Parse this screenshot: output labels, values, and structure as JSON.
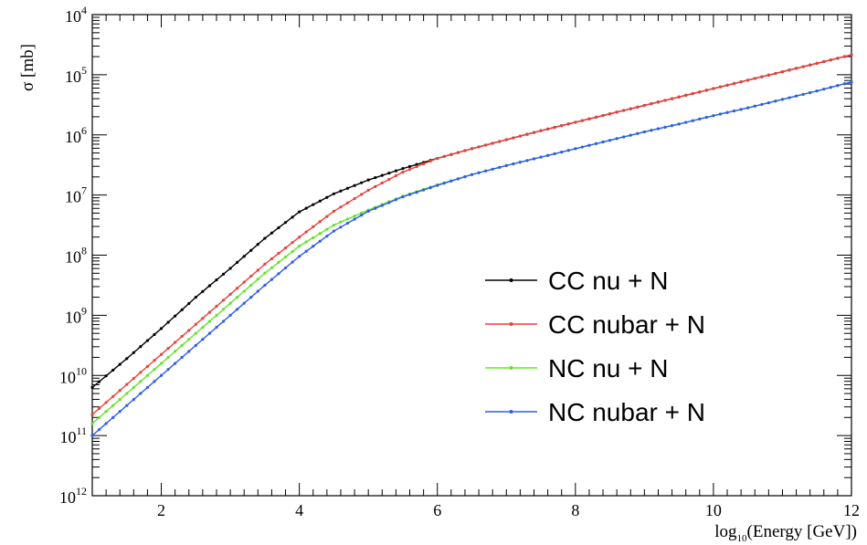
{
  "chart_data": {
    "type": "line",
    "xlabel": "log10(Energy [GeV])",
    "xlabel_parts": {
      "pre": "log",
      "sub": "10",
      "post": "(Energy [GeV])"
    },
    "ylabel": "σ [mb]",
    "x_scale": "linear",
    "y_scale": "log",
    "xlim": [
      1,
      12
    ],
    "y_axis_note": "y tick labels are printed with positive exponents (misprinted minus signs); values below are the cross sections in mb",
    "ylim": [
      1e-12,
      0.0001
    ],
    "x_ticks": [
      2,
      4,
      6,
      8,
      10,
      12
    ],
    "y_ticks": [
      {
        "value": 0.0001,
        "base": "10",
        "exp": "4"
      },
      {
        "value": 1e-05,
        "base": "10",
        "exp": "5"
      },
      {
        "value": 1e-06,
        "base": "10",
        "exp": "6"
      },
      {
        "value": 1e-07,
        "base": "10",
        "exp": "7"
      },
      {
        "value": 1e-08,
        "base": "10",
        "exp": "8"
      },
      {
        "value": 1e-09,
        "base": "10",
        "exp": "9"
      },
      {
        "value": 1e-10,
        "base": "10",
        "exp": "10"
      },
      {
        "value": 1e-11,
        "base": "10",
        "exp": "11"
      },
      {
        "value": 1e-12,
        "base": "10",
        "exp": "12"
      }
    ],
    "grid": false,
    "legend_position": "bottom-right",
    "x": [
      1,
      1.5,
      2,
      2.5,
      3,
      3.5,
      4,
      4.5,
      5,
      5.5,
      6,
      6.5,
      7,
      7.5,
      8,
      8.5,
      9,
      9.5,
      10,
      10.5,
      11,
      11.5,
      12
    ],
    "series": [
      {
        "name": "CC nu + N",
        "color": "#000000",
        "log10_values": [
          -10.2,
          -9.72,
          -9.22,
          -8.7,
          -8.22,
          -7.72,
          -7.28,
          -6.98,
          -6.75,
          -6.56,
          -6.39,
          -6.23,
          -6.08,
          -5.93,
          -5.79,
          -5.65,
          -5.51,
          -5.37,
          -5.23,
          -5.09,
          -4.95,
          -4.81,
          -4.67
        ]
      },
      {
        "name": "CC nubar + N",
        "color": "#e8423a",
        "log10_values": [
          -10.65,
          -10.15,
          -9.65,
          -9.15,
          -8.65,
          -8.15,
          -7.7,
          -7.27,
          -6.92,
          -6.62,
          -6.39,
          -6.23,
          -6.08,
          -5.93,
          -5.79,
          -5.65,
          -5.51,
          -5.37,
          -5.23,
          -5.09,
          -4.95,
          -4.81,
          -4.67
        ]
      },
      {
        "name": "NC nu + N",
        "color": "#66e22e",
        "log10_values": [
          -10.8,
          -10.3,
          -9.8,
          -9.3,
          -8.8,
          -8.3,
          -7.85,
          -7.5,
          -7.25,
          -7.02,
          -6.83,
          -6.66,
          -6.51,
          -6.37,
          -6.23,
          -6.09,
          -5.95,
          -5.82,
          -5.68,
          -5.55,
          -5.41,
          -5.27,
          -5.12
        ]
      },
      {
        "name": "NC nubar + N",
        "color": "#2f5de8",
        "log10_values": [
          -11.0,
          -10.5,
          -10.0,
          -9.5,
          -9.0,
          -8.5,
          -8.02,
          -7.6,
          -7.27,
          -7.03,
          -6.84,
          -6.66,
          -6.51,
          -6.37,
          -6.23,
          -6.09,
          -5.95,
          -5.82,
          -5.68,
          -5.55,
          -5.41,
          -5.27,
          -5.12
        ]
      }
    ]
  }
}
